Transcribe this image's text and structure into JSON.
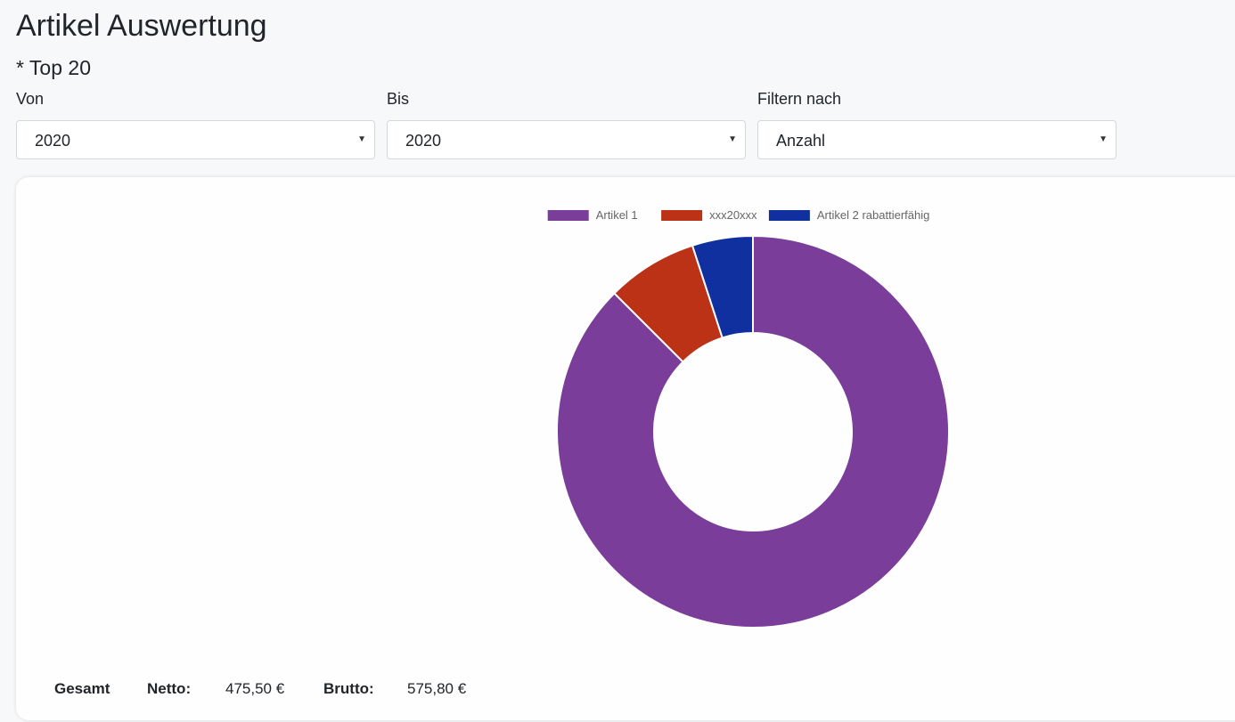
{
  "page": {
    "title": "Artikel Auswertung",
    "subtitle": "* Top 20"
  },
  "filters": {
    "from": {
      "label": "Von",
      "value": "2020"
    },
    "to": {
      "label": "Bis",
      "value": "2020"
    },
    "filter_by": {
      "label": "Filtern nach",
      "value": "Anzahl"
    }
  },
  "chart_data": {
    "type": "pie",
    "variant": "doughnut",
    "legend_position": "top",
    "categories": [
      "Artikel 1",
      "xxx20xxx",
      "Artikel 2 rabattierfähig"
    ],
    "values": [
      87.5,
      7.5,
      5.0
    ],
    "colors": [
      "#7a3d9a",
      "#bb3216",
      "#10309f"
    ]
  },
  "summary": {
    "total_label": "Gesamt",
    "net_label": "Netto:",
    "net_value": "475,50 €",
    "gross_label": "Brutto:",
    "gross_value": "575,80 €"
  },
  "icons": {
    "caret": "caret-down-icon"
  }
}
